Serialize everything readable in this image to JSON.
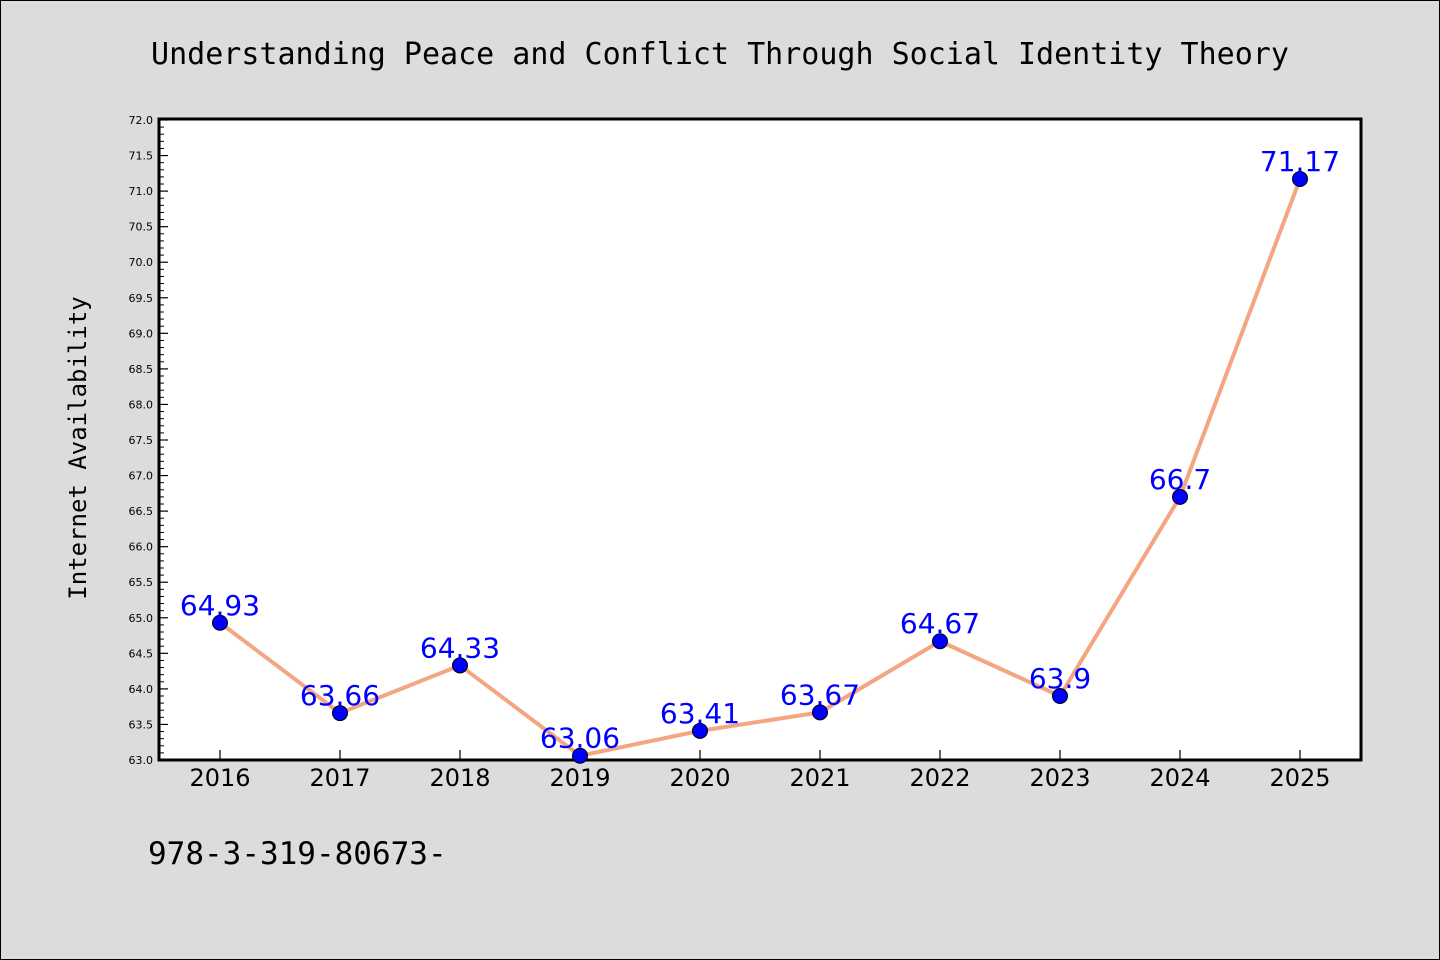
{
  "chart_data": {
    "type": "line",
    "title": "Understanding Peace and Conflict Through Social Identity Theory",
    "xlabel": "",
    "ylabel": "Internet Availability",
    "categories": [
      "2016",
      "2017",
      "2018",
      "2019",
      "2020",
      "2021",
      "2022",
      "2023",
      "2024",
      "2025"
    ],
    "series": [
      {
        "values": [
          64.93,
          63.66,
          64.33,
          63.06,
          63.41,
          63.67,
          64.67,
          63.9,
          66.7,
          71.17
        ],
        "labels": [
          "64.93",
          "63.66",
          "64.33",
          "63.06",
          "63.41",
          "63.67",
          "64.67",
          "63.9",
          "66.7",
          "71.17"
        ],
        "line_color": "#f4a582",
        "marker_color": "#0000ff"
      }
    ],
    "ylim": [
      63.0,
      72.0
    ],
    "yticks": [
      "63.0",
      "63.5",
      "64.0",
      "64.5",
      "65.0",
      "65.5",
      "66.0",
      "66.5",
      "67.0",
      "67.5",
      "68.0",
      "68.5",
      "69.0",
      "69.5",
      "70.0",
      "70.5",
      "71.0",
      "71.5",
      "72.0"
    ],
    "grid": false,
    "legend": "none"
  },
  "footer": {
    "isbn": "978-3-319-80673-"
  }
}
